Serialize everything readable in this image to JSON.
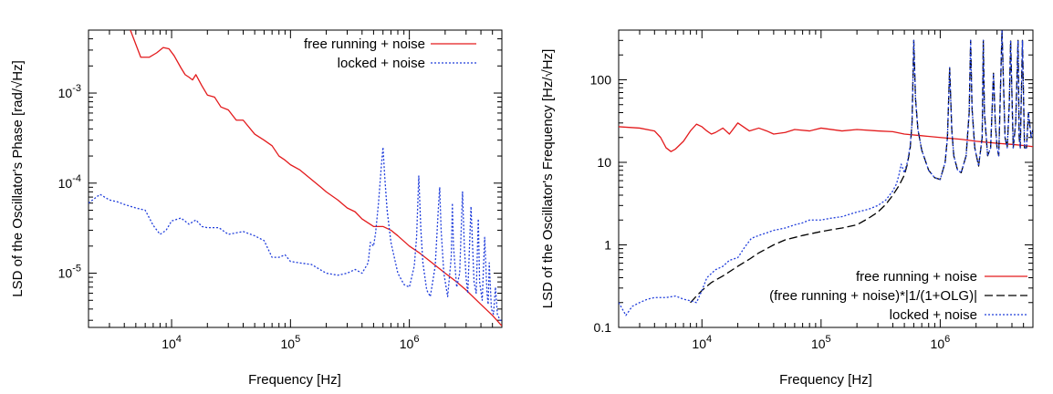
{
  "chart_data": [
    {
      "type": "line",
      "xscale": "log",
      "yscale": "log",
      "xlabel": "Frequency [Hz]",
      "ylabel": "LSD of the Oscillator's Phase [rad/√Hz]",
      "xlim": [
        2000,
        6000000
      ],
      "ylim": [
        2.5e-06,
        0.005
      ],
      "grid": false,
      "legend_position": "top-right",
      "xticks": [
        {
          "value": 10000,
          "base": "10",
          "exp": "4"
        },
        {
          "value": 100000,
          "base": "10",
          "exp": "5"
        },
        {
          "value": 1000000,
          "base": "10",
          "exp": "6"
        }
      ],
      "yticks": [
        {
          "value": 1e-05,
          "base": "10",
          "exp": "-5"
        },
        {
          "value": 0.0001,
          "base": "10",
          "exp": "-4"
        },
        {
          "value": 0.001,
          "base": "10",
          "exp": "-3"
        }
      ],
      "series": [
        {
          "name": "free running + noise",
          "color": "#e31a1c",
          "dash": "solid",
          "x": [
            4500,
            5500,
            6500,
            7500,
            8500,
            9500,
            10500,
            12000,
            13000,
            14000,
            15000,
            16000,
            18000,
            20000,
            23000,
            26000,
            30000,
            35000,
            40000,
            50000,
            60000,
            70000,
            80000,
            90000,
            100000,
            120000,
            150000,
            180000,
            200000,
            250000,
            300000,
            350000,
            400000,
            500000,
            600000,
            700000,
            800000,
            1000000,
            1200000,
            1500000,
            2000000,
            2500000,
            3000000,
            4000000,
            5000000,
            6000000
          ],
          "y": [
            0.005,
            0.0025,
            0.0025,
            0.0028,
            0.0032,
            0.0031,
            0.0026,
            0.0019,
            0.0016,
            0.0015,
            0.0014,
            0.0016,
            0.0012,
            0.00095,
            0.0009,
            0.0007,
            0.00065,
            0.0005,
            0.0005,
            0.00035,
            0.0003,
            0.00026,
            0.0002,
            0.00018,
            0.00016,
            0.00014,
            0.00011,
            9e-05,
            8e-05,
            6.5e-05,
            5.3e-05,
            4.8e-05,
            4e-05,
            3.3e-05,
            3.3e-05,
            3e-05,
            2.6e-05,
            2e-05,
            1.7e-05,
            1.35e-05,
            1e-05,
            8e-06,
            6.5e-06,
            4.5e-06,
            3.4e-06,
            2.6e-06
          ]
        },
        {
          "name": "locked + noise",
          "color": "#1f3ddb",
          "dash": "dotted",
          "x": [
            2000,
            2500,
            3000,
            3500,
            4000,
            5000,
            6000,
            7000,
            8000,
            9000,
            10000,
            12000,
            14000,
            16000,
            18000,
            20000,
            25000,
            30000,
            40000,
            50000,
            60000,
            70000,
            80000,
            90000,
            100000,
            120000,
            150000,
            200000,
            250000,
            300000,
            350000,
            400000,
            450000,
            470000,
            500000,
            520000,
            550000,
            580000,
            600000,
            620000,
            650000,
            700000,
            800000,
            900000,
            1000000,
            1100000,
            1150000,
            1200000,
            1250000,
            1300000,
            1400000,
            1500000,
            1650000,
            1750000,
            1800000,
            1850000,
            1950000,
            2100000,
            2250000,
            2300000,
            2350000,
            2500000,
            2650000,
            2800000,
            2900000,
            3000000,
            3100000,
            3300000,
            3500000,
            3650000,
            3800000,
            3900000,
            4100000,
            4300000,
            4500000,
            4600000,
            4700000,
            4900000,
            5100000,
            5300000,
            5500000,
            5800000,
            6000000
          ],
          "y": [
            6e-05,
            7.5e-05,
            6.5e-05,
            6.2e-05,
            5.8e-05,
            5.3e-05,
            5e-05,
            3.4e-05,
            2.7e-05,
            3e-05,
            3.8e-05,
            4.1e-05,
            3.5e-05,
            3.9e-05,
            3.3e-05,
            3.2e-05,
            3.2e-05,
            2.7e-05,
            2.9e-05,
            2.6e-05,
            2.3e-05,
            1.5e-05,
            1.5e-05,
            1.6e-05,
            1.35e-05,
            1.3e-05,
            1.25e-05,
            1e-05,
            9.5e-06,
            1e-05,
            1.1e-05,
            1e-05,
            1.3e-05,
            2.2e-05,
            2e-05,
            2.8e-05,
            6e-05,
            0.00015,
            0.00025,
            0.00012,
            5e-05,
            2.2e-05,
            1e-05,
            7.5e-06,
            7e-06,
            1.2e-05,
            2.5e-05,
            0.00012,
            3e-05,
            1.3e-05,
            6.5e-06,
            5.5e-06,
            1.2e-05,
            5e-05,
            9e-05,
            3e-05,
            1e-05,
            5.5e-06,
            1.5e-05,
            6e-05,
            2e-05,
            7e-06,
            1e-05,
            8e-05,
            2e-05,
            9e-06,
            6e-06,
            5.5e-05,
            8e-06,
            6e-06,
            4e-05,
            8e-06,
            5e-06,
            2.5e-05,
            6e-06,
            4.5e-06,
            1.3e-05,
            4e-06,
            3.5e-06,
            7e-06,
            3.5e-06,
            3e-06,
            3e-06
          ]
        }
      ]
    },
    {
      "type": "line",
      "xscale": "log",
      "yscale": "log",
      "xlabel": "Frequency [Hz]",
      "ylabel": "LSD of the Oscillator's Frequency [Hz/√Hz]",
      "xlim": [
        2000,
        6000000
      ],
      "ylim": [
        0.1,
        400
      ],
      "grid": false,
      "legend_position": "bottom-right",
      "xticks": [
        {
          "value": 10000,
          "base": "10",
          "exp": "4"
        },
        {
          "value": 100000,
          "base": "10",
          "exp": "5"
        },
        {
          "value": 1000000,
          "base": "10",
          "exp": "6"
        }
      ],
      "yticks": [
        {
          "value": 0.1,
          "label": "0.1"
        },
        {
          "value": 1,
          "label": "1"
        },
        {
          "value": 10,
          "label": "10"
        },
        {
          "value": 100,
          "label": "100"
        }
      ],
      "series": [
        {
          "name": "free running + noise",
          "color": "#e31a1c",
          "dash": "solid",
          "x": [
            2000,
            3000,
            4000,
            4500,
            5000,
            5500,
            6000,
            7000,
            8000,
            9000,
            10000,
            11000,
            12000,
            13000,
            15000,
            17000,
            20000,
            25000,
            30000,
            35000,
            40000,
            50000,
            60000,
            80000,
            100000,
            150000,
            200000,
            300000,
            400000,
            500000,
            700000,
            1000000,
            1500000,
            2000000,
            3000000,
            4000000,
            5000000,
            6000000
          ],
          "y": [
            27,
            26,
            24,
            20,
            15,
            13.5,
            14.5,
            18,
            24,
            29,
            27,
            24,
            22,
            23,
            26,
            22,
            30,
            24,
            26,
            24,
            22,
            23,
            25,
            24,
            26,
            24,
            25,
            24,
            23.5,
            22,
            21,
            20,
            19,
            18,
            17,
            16.5,
            16,
            15.5
          ]
        },
        {
          "name": "(free running + noise)*|1/(1+OLG)|",
          "color": "#000000",
          "dash": "dashed",
          "x": [
            8000,
            9000,
            10000,
            12000,
            15000,
            20000,
            25000,
            30000,
            40000,
            50000,
            70000,
            100000,
            130000,
            150000,
            200000,
            250000,
            300000,
            350000,
            400000,
            450000,
            500000,
            530000,
            560000,
            580000,
            600000,
            620000,
            650000,
            700000,
            800000,
            900000,
            1000000,
            1100000,
            1150000,
            1200000,
            1250000,
            1300000,
            1400000,
            1500000,
            1650000,
            1750000,
            1800000,
            1850000,
            1950000,
            2100000,
            2250000,
            2300000,
            2350000,
            2500000,
            2650000,
            2800000,
            2900000,
            3000000,
            3100000,
            3300000,
            3500000,
            3650000,
            3800000,
            3900000,
            4100000,
            4300000,
            4500000,
            4600000,
            4700000,
            4900000,
            5100000,
            5300000,
            5500000,
            5800000,
            6000000
          ],
          "y": [
            0.2,
            0.24,
            0.28,
            0.35,
            0.42,
            0.55,
            0.67,
            0.8,
            1.0,
            1.15,
            1.3,
            1.45,
            1.55,
            1.6,
            1.75,
            2.1,
            2.5,
            3.1,
            4.0,
            5.2,
            7.0,
            9.5,
            15,
            30,
            300,
            60,
            25,
            14,
            8,
            6.5,
            6.2,
            10,
            20,
            140,
            25,
            12,
            8,
            7.5,
            12,
            40,
            300,
            45,
            15,
            9,
            20,
            300,
            40,
            12,
            15,
            120,
            30,
            15,
            12,
            400,
            20,
            15,
            50,
            300,
            15,
            30,
            300,
            20,
            15,
            300,
            15,
            15,
            40,
            20,
            25
          ]
        },
        {
          "name": "locked + noise",
          "color": "#1f3ddb",
          "dash": "dotted",
          "x": [
            2000,
            2300,
            2600,
            3000,
            3500,
            4000,
            5000,
            6000,
            7000,
            8000,
            9000,
            10000,
            11000,
            12000,
            13000,
            15000,
            17000,
            20000,
            23000,
            26000,
            30000,
            35000,
            40000,
            50000,
            60000,
            70000,
            80000,
            100000,
            120000,
            150000,
            200000,
            250000,
            300000,
            350000,
            400000,
            430000,
            450000,
            470000,
            500000,
            530000,
            560000,
            580000,
            600000,
            620000,
            650000,
            700000,
            800000,
            900000,
            1000000,
            1100000,
            1150000,
            1200000,
            1250000,
            1300000,
            1400000,
            1500000,
            1650000,
            1750000,
            1800000,
            1850000,
            1950000,
            2100000,
            2250000,
            2300000,
            2350000,
            2500000,
            2650000,
            2800000,
            2900000,
            3000000,
            3100000,
            3300000,
            3500000,
            3650000,
            3800000,
            3900000,
            4100000,
            4300000,
            4500000,
            4600000,
            4700000,
            4900000,
            5100000,
            5300000,
            5500000,
            5800000,
            6000000
          ],
          "y": [
            0.2,
            0.14,
            0.18,
            0.2,
            0.22,
            0.23,
            0.23,
            0.24,
            0.22,
            0.21,
            0.2,
            0.28,
            0.4,
            0.45,
            0.5,
            0.55,
            0.65,
            0.7,
            0.95,
            1.2,
            1.3,
            1.4,
            1.5,
            1.6,
            1.75,
            1.85,
            2.0,
            2.0,
            2.1,
            2.2,
            2.5,
            2.7,
            3.0,
            3.5,
            4.5,
            5.5,
            7.0,
            9.5,
            7.5,
            10,
            16,
            30,
            300,
            60,
            25,
            14,
            8,
            6.5,
            6.2,
            10,
            20,
            140,
            25,
            12,
            8,
            7.5,
            12,
            40,
            300,
            45,
            15,
            9,
            20,
            300,
            40,
            12,
            15,
            120,
            30,
            15,
            12,
            400,
            20,
            15,
            50,
            300,
            15,
            30,
            300,
            20,
            15,
            300,
            15,
            15,
            40,
            20,
            25
          ]
        }
      ]
    }
  ]
}
